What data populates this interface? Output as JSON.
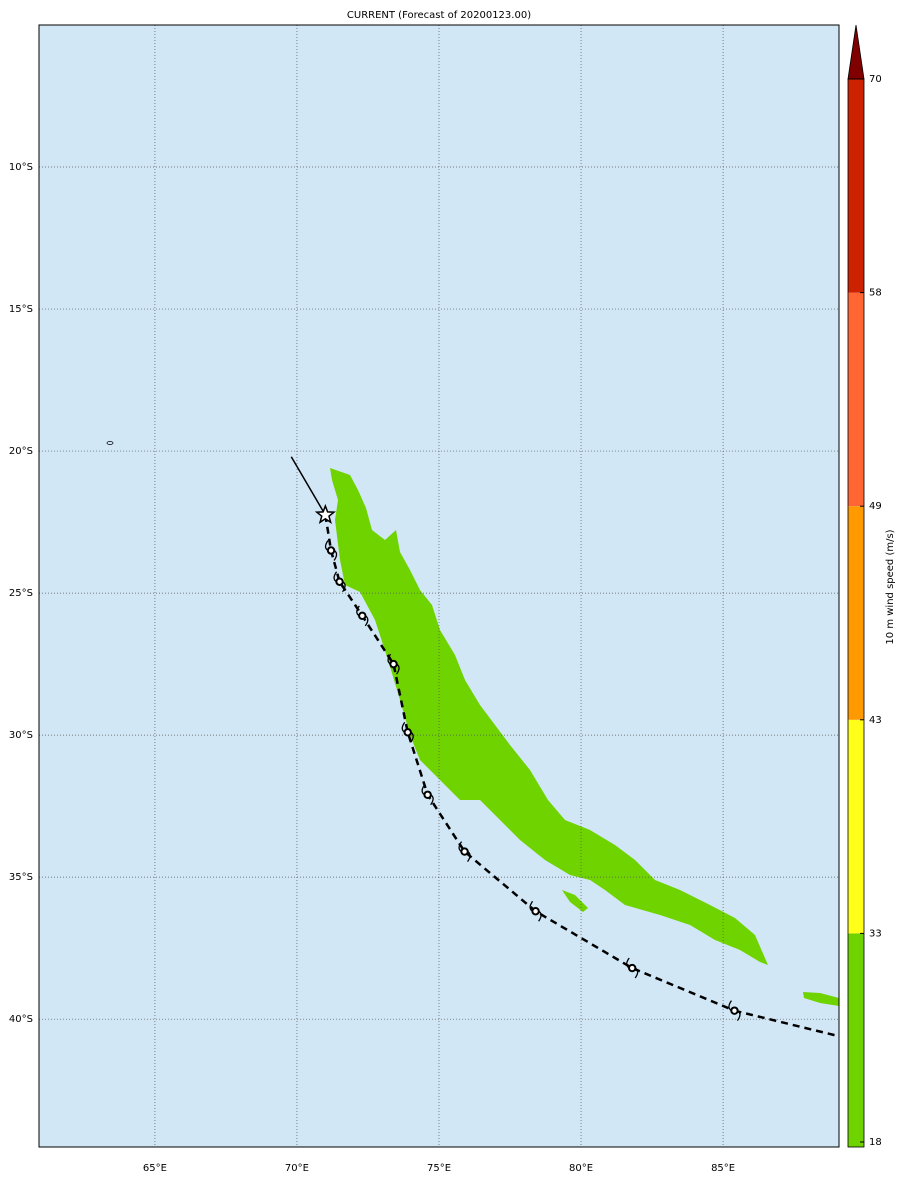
{
  "chart_data": {
    "type": "map",
    "title": "CURRENT (Forecast of 20200123.00)",
    "xlim": [
      60.92,
      89.08
    ],
    "ylim": [
      -44.5,
      -5
    ],
    "xticks": [
      {
        "value": 65,
        "label": "65°E"
      },
      {
        "value": 70,
        "label": "70°E"
      },
      {
        "value": 75,
        "label": "75°E"
      },
      {
        "value": 80,
        "label": "80°E"
      },
      {
        "value": 85,
        "label": "85°E"
      }
    ],
    "yticks": [
      {
        "value": -10,
        "label": "10°S"
      },
      {
        "value": -15,
        "label": "15°S"
      },
      {
        "value": -20,
        "label": "20°S"
      },
      {
        "value": -25,
        "label": "25°S"
      },
      {
        "value": -30,
        "label": "30°S"
      },
      {
        "value": -35,
        "label": "35°S"
      },
      {
        "value": -40,
        "label": "40°S"
      }
    ],
    "grid": true,
    "ocean_color": "#d1e7f5",
    "track": {
      "past": {
        "lon": [
          69.8,
          71.0
        ],
        "lat": [
          -20.2,
          -22.25
        ]
      },
      "current": {
        "lon": 71.0,
        "lat": -22.25
      },
      "forecast": {
        "lon": [
          71.2,
          71.5,
          72.3,
          73.4,
          73.9,
          74.6,
          75.9,
          78.4,
          81.8,
          85.4
        ],
        "lat": [
          -23.5,
          -24.6,
          -25.8,
          -27.5,
          -29.9,
          -32.1,
          -34.1,
          -36.2,
          -38.2,
          -39.7
        ]
      },
      "exit": {
        "lon": 89.08,
        "lat": -40.6
      }
    },
    "colorbar": {
      "label": "10 m wind speed (m/s)",
      "ticks": [
        18,
        33,
        43,
        49,
        58,
        70
      ],
      "colors": [
        "#6fd300",
        "#ffff1a",
        "#ff9900",
        "#ff6633",
        "#cc2200"
      ],
      "extend_color": "#800000"
    }
  }
}
